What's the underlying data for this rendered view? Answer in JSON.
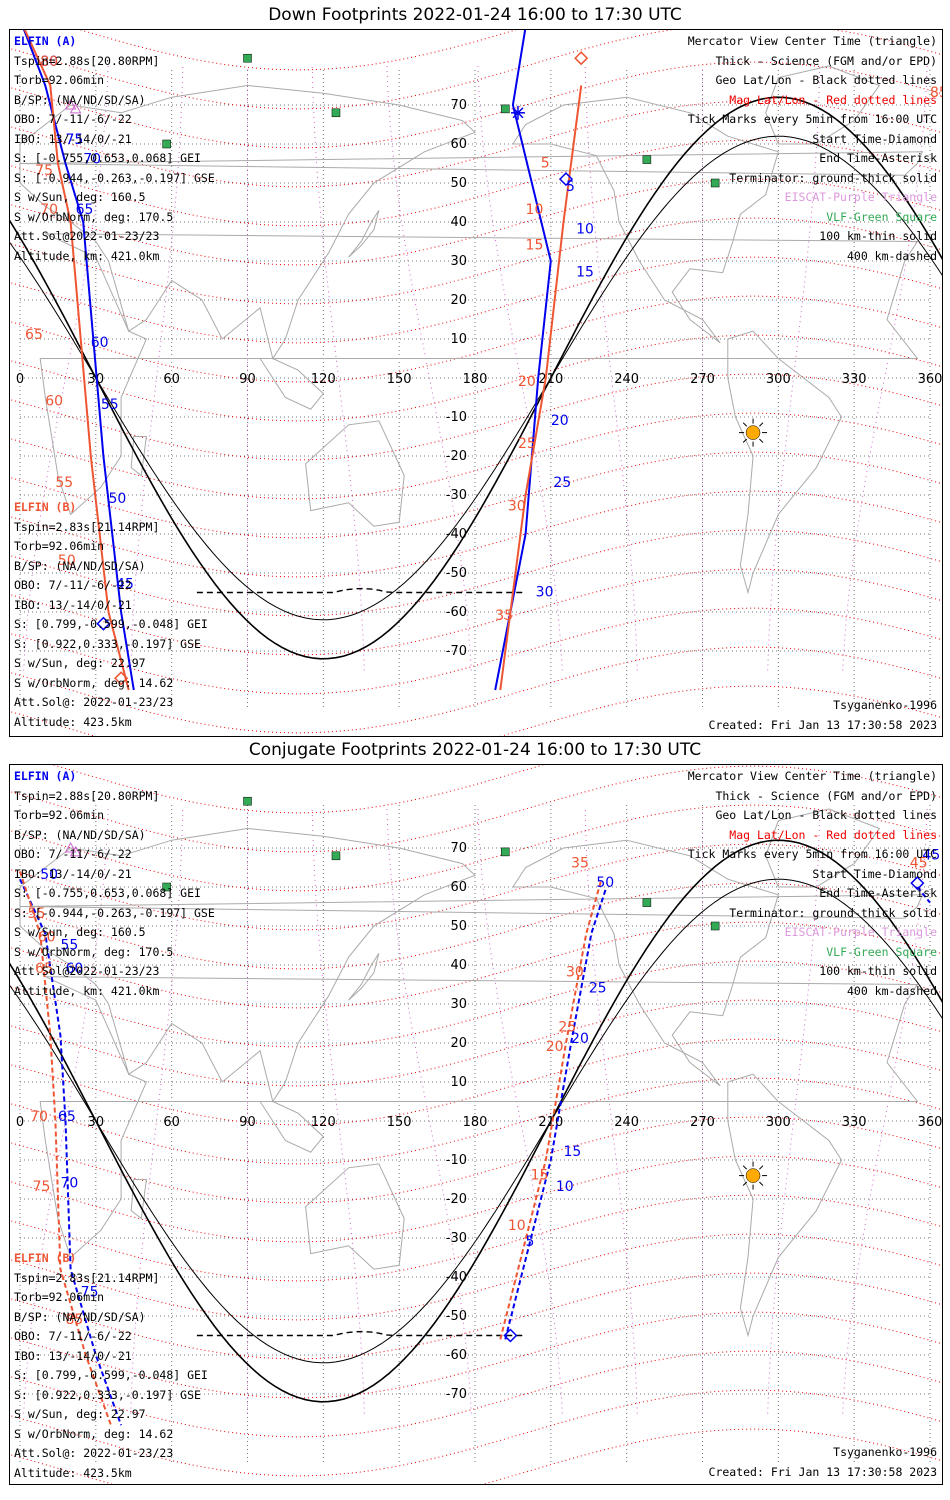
{
  "panels": [
    {
      "title": "Down Footprints 2022-01-24 16:00 to 17:30 UTC",
      "sc_a": [
        "ELFIN (A)",
        "Tspin=2.88s[20.80RPM]",
        "Torb=92.06min",
        "B/SP: (NA/ND/SD/SA)",
        "OBO: 7/-11/-6/-22",
        "IBO: 13/-14/0/-21",
        "S: [-0.755,0.653,0.068] GEI",
        "S: [-0.944,-0.263,-0.197] GSE",
        "S w/Sun, deg: 160.5",
        "S w/OrbNorm, deg: 170.5",
        "Att.Sol@2022-01-23/23",
        "Altitude, km: 421.0km"
      ],
      "sc_b": [
        "ELFIN (B)",
        "Tspin=2.83s[21.14RPM]",
        "Torb=92.06min",
        "B/SP: (NA/ND/SD/SA)",
        "OBO: 7/-11/-6/-22",
        "IBO: 13/-14/0/-21",
        "S: [0.799,-0.599,-0.048] GEI",
        "S: [0.922,0.333,-0.197] GSE",
        "S w/Sun, deg: 22.97",
        "S w/OrbNorm, deg: 14.62",
        "Att.Sol@: 2022-01-23/23",
        "Altitude: 423.5km"
      ]
    },
    {
      "title": "Conjugate Footprints 2022-01-24 16:00 to 17:30 UTC",
      "sc_a": [
        "ELFIN (A)",
        "Tspin=2.88s[20.80RPM]",
        "Torb=92.06min",
        "B/SP: (NA/ND/SD/SA)",
        "OBO: 7/-11/-6/-22",
        "IBO: 13/-14/0/-21",
        "S: [-0.755,0.653,0.068] GEI",
        "S: [-0.944,-0.263,-0.197] GSE",
        "S w/Sun, deg: 160.5",
        "S w/OrbNorm, deg: 170.5",
        "Att.Sol@2022-01-23/23",
        "Altitude, km: 421.0km"
      ],
      "sc_b": [
        "ELFIN (B)",
        "Tspin=2.83s[21.14RPM]",
        "Torb=92.06min",
        "B/SP: (NA/ND/SD/SA)",
        "OBO: 7/-11/-6/-22",
        "IBO: 13/-14/0/-21",
        "S: [0.799,-0.599,-0.048] GEI",
        "S: [0.922,0.333,-0.197] GSE",
        "S w/Sun, deg: 22.97",
        "S w/OrbNorm, deg: 14.62",
        "Att.Sol@: 2022-01-23/23",
        "Altitude: 423.5km"
      ]
    }
  ],
  "legend": [
    {
      "text": "Mercator View Center Time (triangle)",
      "color": "#000000"
    },
    {
      "text": "Thick - Science (FGM and/or EPD)",
      "color": "#000000"
    },
    {
      "text": "Geo Lat/Lon - Black dotted lines",
      "color": "#000000"
    },
    {
      "text": "Mag Lat/Lon - Red dotted lines",
      "color": "#ee0000"
    },
    {
      "text": "Tick Marks every 5min from 16:00 UTC",
      "color": "#000000"
    },
    {
      "text": "Start Time-Diamond",
      "color": "#000000"
    },
    {
      "text": "End Time-Asterisk",
      "color": "#000000"
    },
    {
      "text": "Terminator: ground-thick solid",
      "color": "#000000"
    },
    {
      "text": "EISCAT-Purple Triangle",
      "color": "#dd99dd"
    },
    {
      "text": "VLF-Green Square",
      "color": "#33aa55"
    },
    {
      "text": "100 km-thin solid",
      "color": "#000000"
    },
    {
      "text": "400 km-dashed",
      "color": "#000000"
    }
  ],
  "footer": {
    "model": "Tsyganenko-1996",
    "created": "Created: Fri Jan 13 17:30:58 2023"
  },
  "axes": {
    "lon_ticks": [
      "0",
      "30",
      "60",
      "90",
      "120",
      "150",
      "180",
      "210",
      "240",
      "270",
      "300",
      "330",
      "360"
    ],
    "lat_ticks": [
      "70",
      "60",
      "50",
      "40",
      "30",
      "20",
      "10",
      "-10",
      "-20",
      "-30",
      "-40",
      "-50",
      "-60",
      "-70"
    ]
  },
  "tracks": {
    "down": {
      "a_left": [
        "80",
        "75",
        "70",
        "65",
        "60",
        "55",
        "50",
        "45"
      ],
      "b_left": [
        "85",
        "80",
        "75",
        "70",
        "65",
        "60",
        "55",
        "50"
      ],
      "a_right": [
        "5",
        "10",
        "15",
        "20",
        "25",
        "30"
      ],
      "b_right": [
        "5",
        "10",
        "15",
        "20",
        "25",
        "30",
        "35"
      ]
    },
    "conj": {
      "a_left": [
        "50",
        "55",
        "60",
        "65",
        "70",
        "75"
      ],
      "b_left": [
        "55",
        "60",
        "65",
        "70",
        "75",
        "85"
      ],
      "a_right": [
        "5",
        "10",
        "15",
        "20",
        "25",
        "50",
        "45"
      ],
      "b_right": [
        "10",
        "15",
        "20",
        "25",
        "30",
        "35",
        "45"
      ]
    }
  },
  "colors": {
    "sc_a": "#0000ee",
    "sc_b": "#ee5533",
    "mag_grid": "#ee0000",
    "eiscat": "#dd99dd",
    "vlf": "#33aa55",
    "sun": "#ffaa00"
  }
}
